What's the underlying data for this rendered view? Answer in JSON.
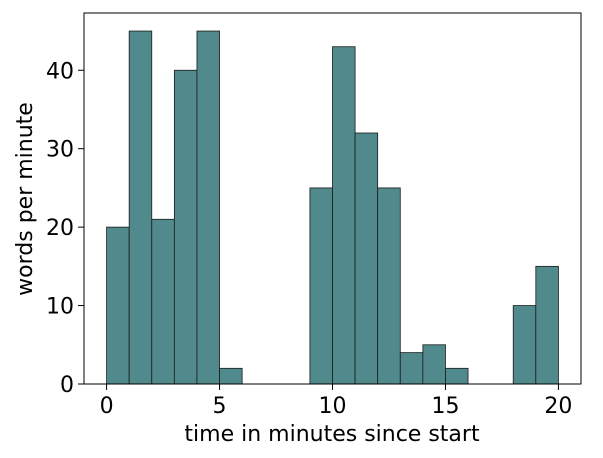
{
  "chart_data": {
    "type": "bar",
    "title": "",
    "xlabel": "time in minutes since start",
    "ylabel": "words per minute",
    "xlim": [
      -1,
      21
    ],
    "ylim": [
      0,
      47.3
    ],
    "xticks": [
      0,
      5,
      10,
      15,
      20
    ],
    "yticks": [
      0,
      10,
      20,
      30,
      40
    ],
    "grid": false,
    "bar_color": "#508a8c",
    "edge_color": "#1a1a1a",
    "bins": [
      {
        "start": 0,
        "end": 1,
        "value": 20
      },
      {
        "start": 1,
        "end": 2,
        "value": 45
      },
      {
        "start": 2,
        "end": 3,
        "value": 21
      },
      {
        "start": 3,
        "end": 4,
        "value": 40
      },
      {
        "start": 4,
        "end": 5,
        "value": 45
      },
      {
        "start": 5,
        "end": 6,
        "value": 2
      },
      {
        "start": 9,
        "end": 10,
        "value": 25
      },
      {
        "start": 10,
        "end": 11,
        "value": 43
      },
      {
        "start": 11,
        "end": 12,
        "value": 32
      },
      {
        "start": 12,
        "end": 13,
        "value": 25
      },
      {
        "start": 13,
        "end": 14,
        "value": 4
      },
      {
        "start": 14,
        "end": 15,
        "value": 5
      },
      {
        "start": 15,
        "end": 16,
        "value": 2
      },
      {
        "start": 18,
        "end": 19,
        "value": 10
      },
      {
        "start": 19,
        "end": 20,
        "value": 15
      }
    ]
  }
}
